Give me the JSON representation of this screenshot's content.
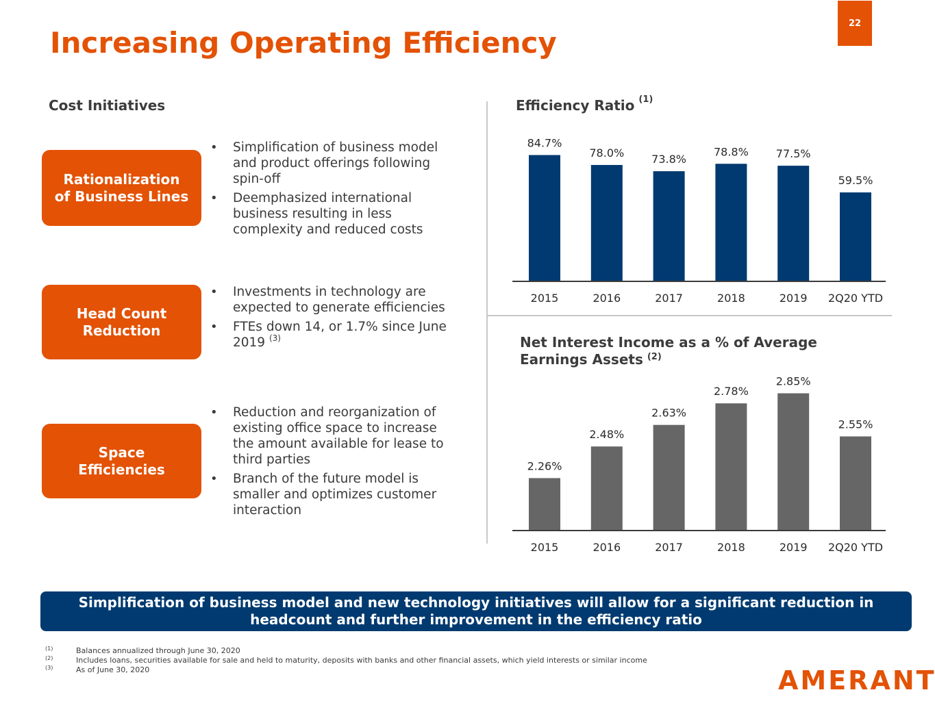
{
  "page_number": "22",
  "title": "Increasing Operating Efficiency",
  "left_heading": "Cost Initiatives",
  "initiatives": [
    {
      "label_line1": "Rationalization",
      "label_line2": "of Business Lines",
      "bullets": [
        {
          "text": "Simplification of business model and product offerings following spin-off",
          "note": ""
        },
        {
          "text": "Deemphasized international business resulting in less complexity and reduced costs",
          "note": ""
        }
      ]
    },
    {
      "label_line1": "Head Count",
      "label_line2": "Reduction",
      "bullets": [
        {
          "text": "Investments in technology are expected to generate efficiencies",
          "note": ""
        },
        {
          "text": "FTEs down 14, or 1.7% since June 2019",
          "note": "(3)"
        }
      ]
    },
    {
      "label_line1": "Space",
      "label_line2": "Efficiencies",
      "bullets": [
        {
          "text": "Reduction and reorganization of existing office space to increase the amount available for lease to third parties",
          "note": ""
        },
        {
          "text": "Branch of the future model is smaller and optimizes customer interaction",
          "note": ""
        }
      ]
    }
  ],
  "chart_data": [
    {
      "type": "bar",
      "title": "Efficiency Ratio",
      "title_note": "(1)",
      "categories": [
        "2015",
        "2016",
        "2017",
        "2018",
        "2019",
        "2Q20 YTD"
      ],
      "values": [
        84.7,
        78.0,
        73.8,
        78.8,
        77.5,
        59.5
      ],
      "labels": [
        "84.7%",
        "78.0%",
        "73.8%",
        "78.8%",
        "77.5%",
        "59.5%"
      ],
      "color": "#003a70",
      "ylim": [
        0,
        90
      ],
      "grid": false,
      "legend": "none"
    },
    {
      "type": "bar",
      "title_line1": "Net Interest Income as a % of Average",
      "title_line2": "Earnings Assets",
      "title_note": "(2)",
      "categories": [
        "2015",
        "2016",
        "2017",
        "2018",
        "2019",
        "2Q20 YTD"
      ],
      "values": [
        2.26,
        2.48,
        2.63,
        2.78,
        2.85,
        2.55
      ],
      "labels": [
        "2.26%",
        "2.48%",
        "2.63%",
        "2.78%",
        "2.85%",
        "2.55%"
      ],
      "color": "#666666",
      "ylim": [
        1.9,
        2.9
      ],
      "grid": false,
      "legend": "none"
    }
  ],
  "banner_text": "Simplification of business model and new technology initiatives will allow for a significant reduction in headcount and further improvement in the efficiency ratio",
  "footnotes": [
    {
      "mark": "(1)",
      "text": "Balances annualized through June 30, 2020"
    },
    {
      "mark": "(2)",
      "text": "Includes loans, securities available for sale and held to maturity, deposits with banks and other financial assets, which yield interests or similar income"
    },
    {
      "mark": "(3)",
      "text": "As of June 30, 2020"
    }
  ],
  "logo_text": "AMERANT",
  "colors": {
    "accent": "#e35205",
    "navy": "#003a70",
    "gray": "#666666"
  }
}
